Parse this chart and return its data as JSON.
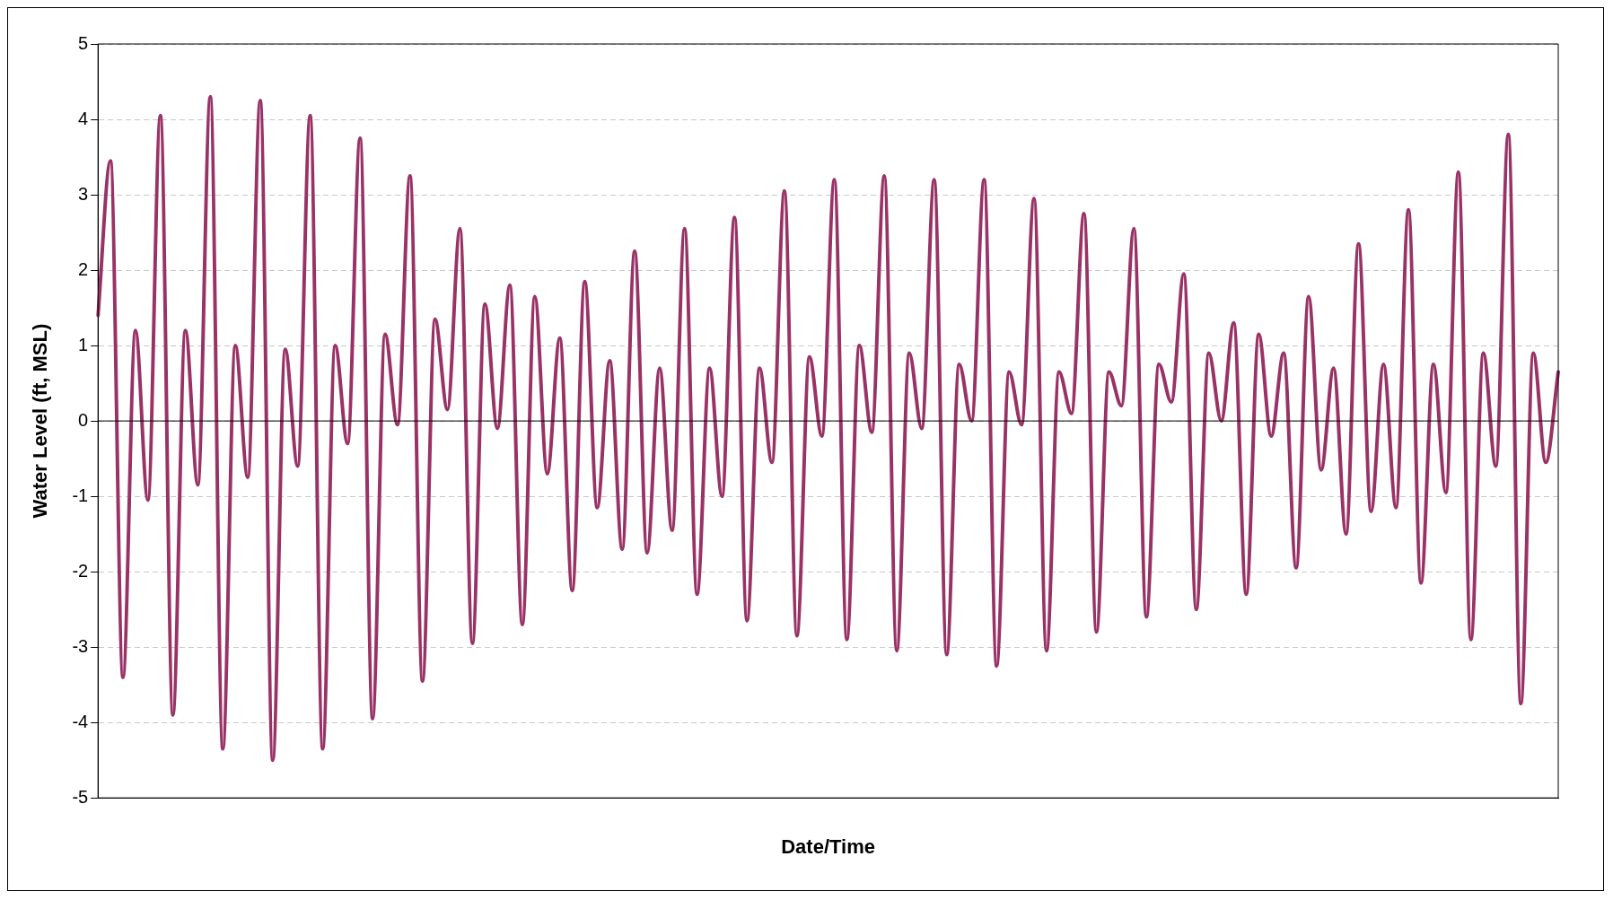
{
  "chart_data": {
    "type": "line",
    "xlabel": "Date/Time",
    "ylabel": "Water Level (ft, MSL)",
    "categories": [
      null,
      null,
      null,
      null,
      null,
      null,
      null,
      null,
      null,
      null,
      null,
      null,
      null,
      null,
      null,
      null,
      null,
      null,
      null,
      null,
      null,
      null,
      null,
      null,
      null,
      null,
      null,
      null,
      null,
      null,
      null,
      null,
      null,
      null,
      null,
      null,
      null,
      null,
      null,
      null,
      null,
      null,
      null,
      null,
      null,
      null,
      null,
      null,
      null,
      null,
      null,
      null,
      null,
      null,
      null,
      null,
      null,
      null,
      null,
      null,
      null,
      null,
      null,
      null,
      null,
      null,
      null,
      null,
      null,
      null,
      null,
      null,
      null,
      null,
      null,
      null,
      null,
      null,
      null,
      null,
      null,
      null,
      null,
      null,
      null,
      null,
      null,
      null,
      null,
      null,
      null,
      null,
      null,
      null,
      null,
      null,
      null,
      null,
      null,
      null,
      null,
      null,
      null,
      null,
      null,
      null,
      null,
      null,
      null,
      null,
      null,
      null,
      null,
      null,
      null,
      null,
      null,
      null
    ],
    "series": [
      {
        "color": "#993366",
        "values": [
          1.4,
          3.45,
          -3.4,
          1.2,
          -1.05,
          4.05,
          -3.9,
          1.2,
          -0.85,
          4.3,
          -4.35,
          1.0,
          -0.75,
          4.25,
          -4.5,
          0.95,
          -0.6,
          4.05,
          -4.35,
          1.0,
          -0.3,
          3.75,
          -3.95,
          1.15,
          -0.05,
          3.25,
          -3.45,
          1.35,
          0.15,
          2.55,
          -2.95,
          1.55,
          -0.1,
          1.8,
          -2.7,
          1.65,
          -0.7,
          1.1,
          -2.25,
          1.85,
          -1.15,
          0.8,
          -1.7,
          2.25,
          -1.75,
          0.7,
          -1.45,
          2.55,
          -2.3,
          0.7,
          -1.0,
          2.7,
          -2.65,
          0.7,
          -0.55,
          3.05,
          -2.85,
          0.85,
          -0.2,
          3.2,
          -2.9,
          1.0,
          -0.15,
          3.25,
          -3.05,
          0.9,
          -0.1,
          3.2,
          -3.1,
          0.75,
          0.0,
          3.2,
          -3.25,
          0.65,
          -0.05,
          2.95,
          -3.05,
          0.65,
          0.1,
          2.75,
          -2.8,
          0.65,
          0.2,
          2.55,
          -2.6,
          0.75,
          0.25,
          1.95,
          -2.5,
          0.9,
          0.0,
          1.3,
          -2.3,
          1.15,
          -0.2,
          0.9,
          -1.95,
          1.65,
          -0.65,
          0.7,
          -1.5,
          2.35,
          -1.2,
          0.75,
          -1.15,
          2.8,
          -2.15,
          0.75,
          -0.95,
          3.3,
          -2.9,
          0.9,
          -0.6,
          3.8,
          -3.75,
          0.9,
          -0.55,
          0.65
        ]
      }
    ],
    "ylim": [
      -5,
      5
    ],
    "yticks": [
      -5,
      -4,
      -3,
      -2,
      -1,
      0,
      1,
      2,
      3,
      4,
      5
    ],
    "grid": "y",
    "ref_lines": [
      {
        "axis": "y",
        "value": 0,
        "color": "#000000"
      }
    ],
    "marker": "none",
    "line_style": "solid",
    "legend": false
  }
}
